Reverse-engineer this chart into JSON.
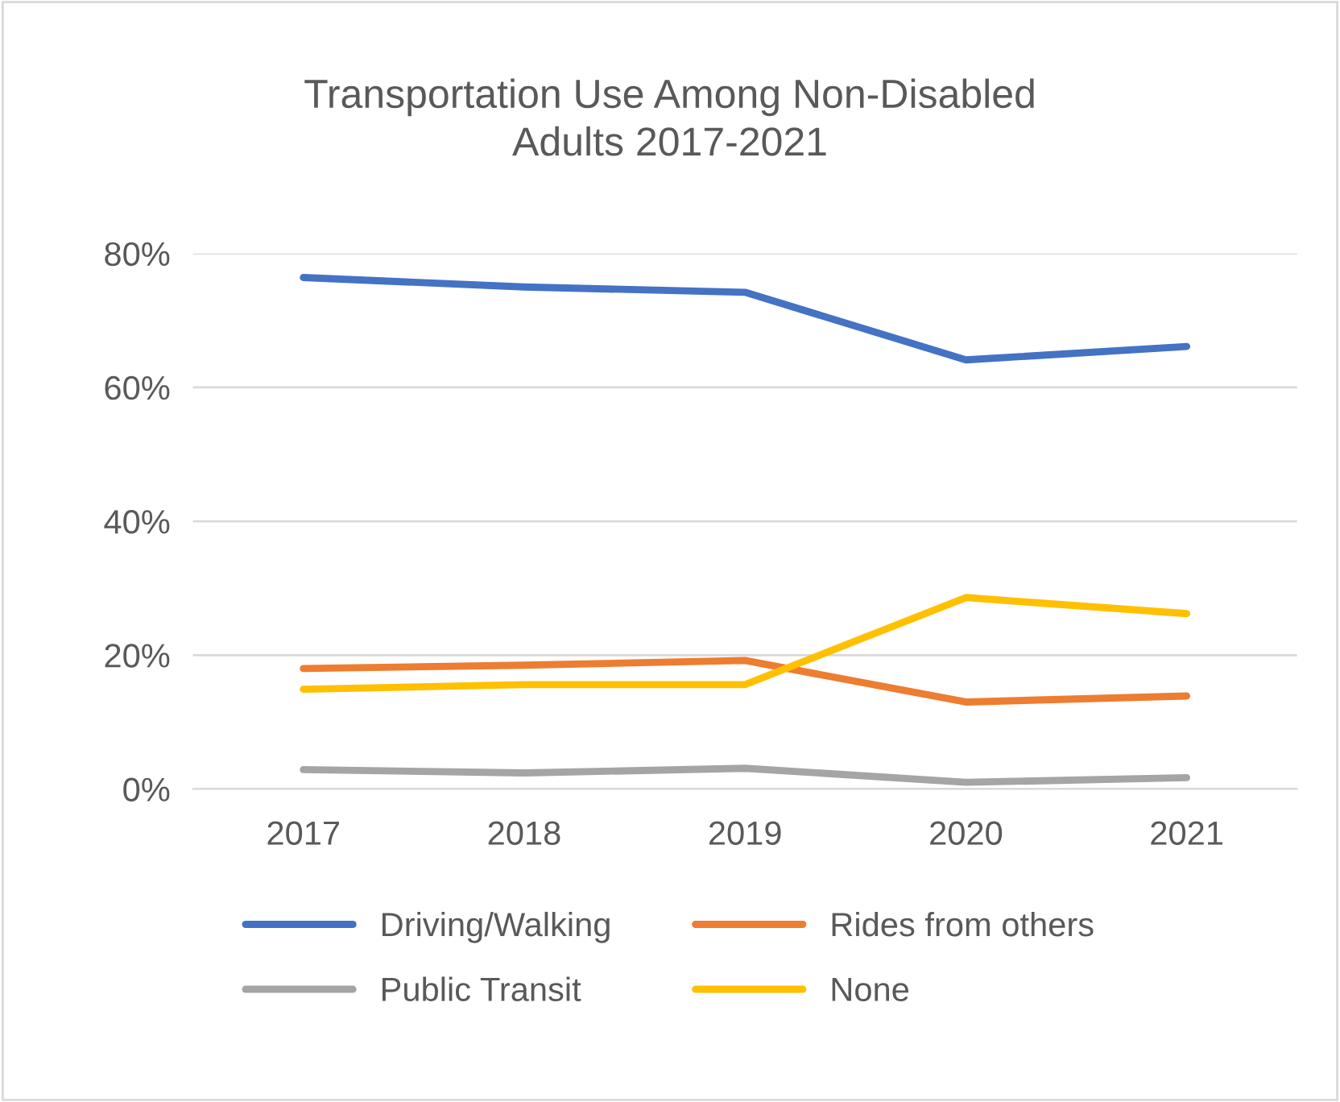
{
  "chart_data": {
    "type": "line",
    "title": "Transportation Use Among Non-Disabled\nAdults 2017-2021",
    "categories": [
      "2017",
      "2018",
      "2019",
      "2020",
      "2021"
    ],
    "series": [
      {
        "name": "Driving/Walking",
        "color": "#4472c4",
        "values": [
          76.4,
          75.0,
          74.2,
          64.1,
          66.1
        ]
      },
      {
        "name": "Rides from others",
        "color": "#ed7d31",
        "values": [
          18.0,
          18.5,
          19.2,
          13.0,
          13.9
        ]
      },
      {
        "name": "Public Transit",
        "color": "#a5a5a5",
        "values": [
          2.9,
          2.4,
          3.1,
          1.0,
          1.7
        ]
      },
      {
        "name": "None",
        "color": "#ffc000",
        "values": [
          14.9,
          15.6,
          15.6,
          28.6,
          26.2
        ]
      }
    ],
    "ylim": [
      0,
      80
    ],
    "yticks": [
      {
        "value": 0,
        "label": "0%"
      },
      {
        "value": 20,
        "label": "20%"
      },
      {
        "value": 40,
        "label": "40%"
      },
      {
        "value": 60,
        "label": "60%"
      },
      {
        "value": 80,
        "label": "80%"
      }
    ],
    "grid": "y",
    "legend": "bottom",
    "marker": "none",
    "line_style": "solid"
  }
}
